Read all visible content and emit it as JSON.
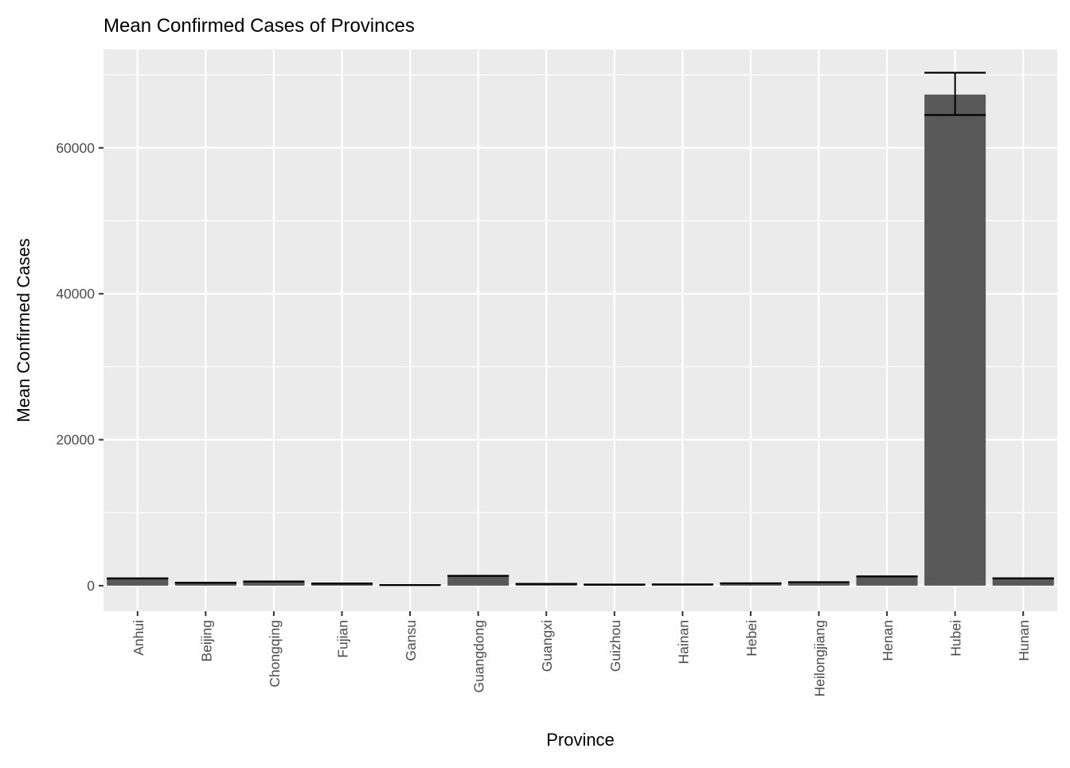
{
  "chart_data": {
    "type": "bar",
    "title": "Mean Confirmed Cases of Provinces",
    "xlabel": "Province",
    "ylabel": "Mean Confirmed Cases",
    "categories": [
      "Anhui",
      "Beijing",
      "Chongqing",
      "Fujian",
      "Gansu",
      "Guangdong",
      "Guangxi",
      "Guizhou",
      "Hainan",
      "Hebei",
      "Heilongjiang",
      "Henan",
      "Hubei",
      "Hunan"
    ],
    "values": [
      990,
      400,
      575,
      295,
      90,
      1350,
      250,
      145,
      165,
      320,
      480,
      1270,
      67300,
      1015
    ],
    "error_bars": [
      {
        "low": 985,
        "high": 995
      },
      {
        "low": 395,
        "high": 405
      },
      {
        "low": 570,
        "high": 580
      },
      {
        "low": 290,
        "high": 300
      },
      {
        "low": 85,
        "high": 95
      },
      {
        "low": 1345,
        "high": 1355
      },
      {
        "low": 245,
        "high": 255
      },
      {
        "low": 140,
        "high": 150
      },
      {
        "low": 160,
        "high": 170
      },
      {
        "low": 315,
        "high": 325
      },
      {
        "low": 475,
        "high": 485
      },
      {
        "low": 1265,
        "high": 1275
      },
      {
        "low": 64500,
        "high": 70300
      },
      {
        "low": 1010,
        "high": 1020
      }
    ],
    "y_ticks": [
      0,
      20000,
      40000,
      60000
    ],
    "y_tick_labels": [
      "0",
      "20000",
      "40000",
      "60000"
    ],
    "ylim": [
      -3500,
      73500
    ],
    "grid": true,
    "legend": "none",
    "colors": {
      "panel_background": "#EBEBEB",
      "grid_line": "#FFFFFF",
      "bar_fill": "#595959",
      "error_bar": "#000000",
      "tick_label": "#4D4D4D",
      "axis_tick": "#333333",
      "title_text": "#000000"
    }
  }
}
